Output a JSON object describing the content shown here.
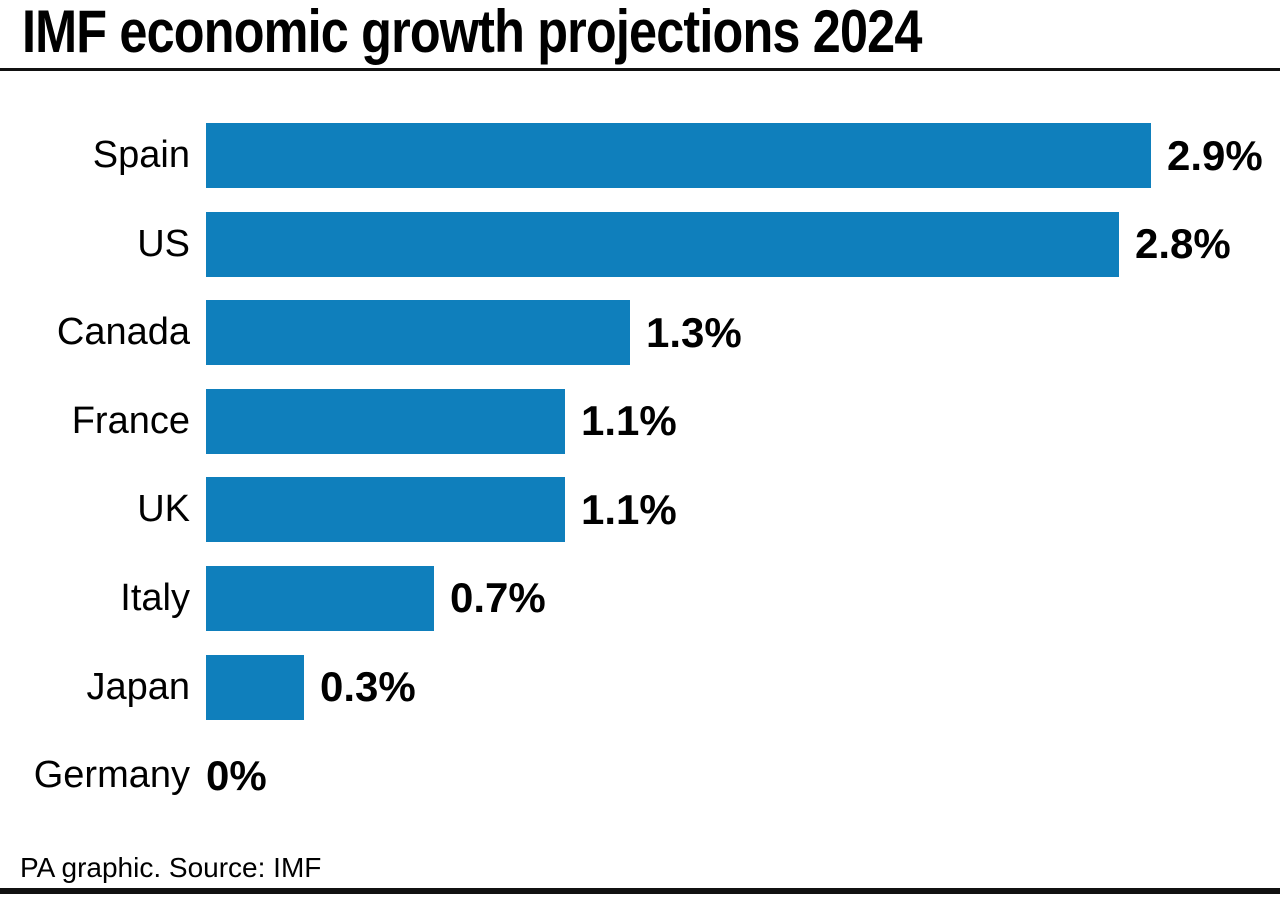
{
  "title": "IMF economic growth projections 2024",
  "footer": "PA graphic. Source: IMF",
  "accent_color": "#0f7fbc",
  "text_color": "#000000",
  "chart_data": {
    "type": "bar",
    "orientation": "horizontal",
    "title": "IMF economic growth projections 2024",
    "categories": [
      "Spain",
      "US",
      "Canada",
      "France",
      "UK",
      "Italy",
      "Japan",
      "Germany"
    ],
    "values": [
      2.9,
      2.8,
      1.3,
      1.1,
      1.1,
      0.7,
      0.3,
      0
    ],
    "value_labels": [
      "2.9%",
      "2.8%",
      "1.3%",
      "1.1%",
      "1.1%",
      "0.7%",
      "0.3%",
      "0%"
    ],
    "unit": "%",
    "xlabel": "",
    "ylabel": "",
    "xlim": [
      0,
      3.3
    ],
    "grid": false,
    "legend": false,
    "bar_color": "#0f7fbc",
    "source": "PA graphic. Source: IMF"
  }
}
